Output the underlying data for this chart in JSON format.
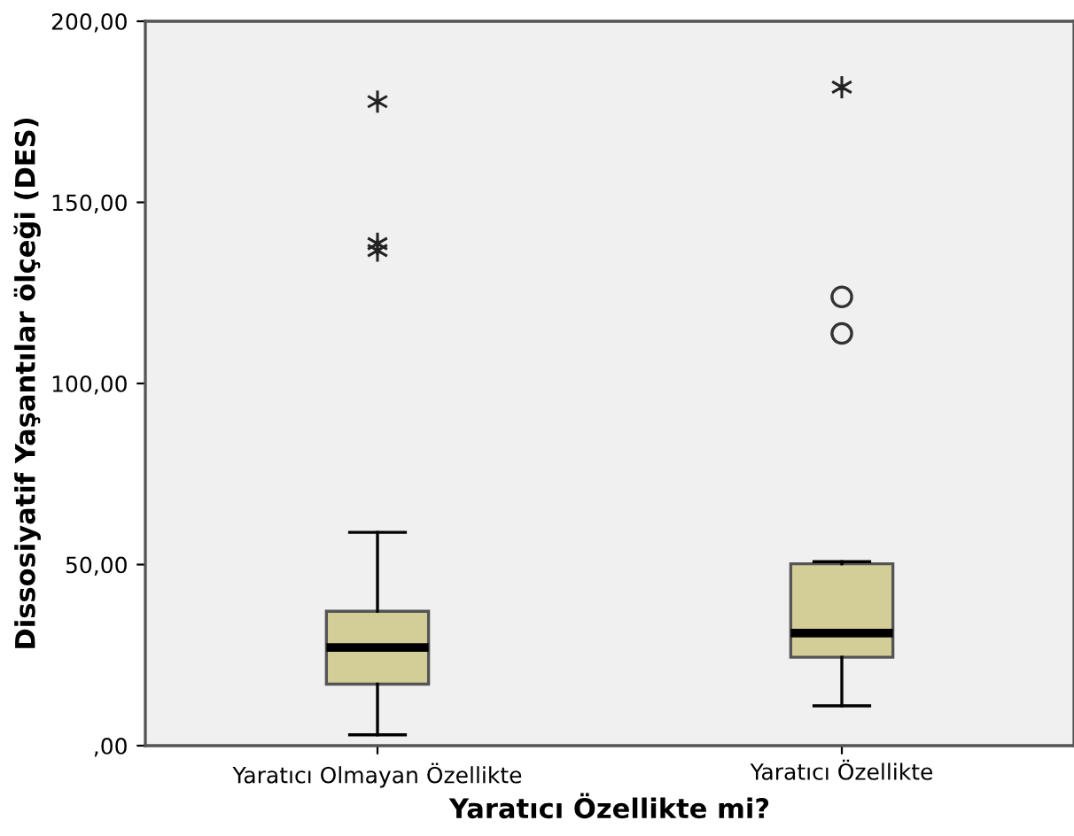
{
  "chart_data": {
    "type": "box",
    "xlabel": "Yaratıcı Özellikte mi?",
    "ylabel": "Dissosiyatif Yaşantılar ölçeği (DES)",
    "categories": [
      "Yaratıcı Olmayan Özellikte",
      "Yaratıcı Özellikte"
    ],
    "boxes": [
      {
        "low": 3.0,
        "q1": 17.0,
        "median": 27.1,
        "q3": 37.1,
        "high": 58.9,
        "outliers": [
          177.8,
          138.6,
          136.7
        ]
      },
      {
        "low": 11.0,
        "q1": 24.4,
        "median": 31.1,
        "q3": 50.2,
        "high": 50.8,
        "outliers": [
          181.8,
          123.9,
          113.8
        ]
      }
    ],
    "color": "#d3ce97",
    "ylim": [
      0,
      200
    ],
    "yticks": [
      {
        "value": 0,
        "label": ",00"
      },
      {
        "value": 50,
        "label": "50,00"
      },
      {
        "value": 100,
        "label": "100,00"
      },
      {
        "value": 150,
        "label": "150,00"
      },
      {
        "value": 200,
        "label": "200,00"
      }
    ],
    "grid": false,
    "legend": false
  }
}
